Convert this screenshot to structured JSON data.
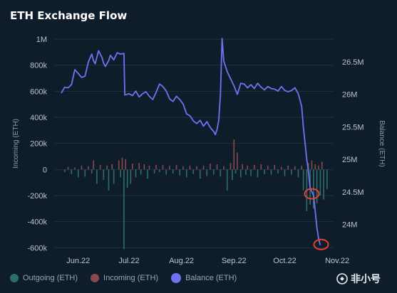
{
  "chart_data": {
    "type": "bar+line",
    "title": "ETH Exchange Flow",
    "ylabel_left": "Incoming (ETH)",
    "ylabel_right": "Balance (ETH)",
    "yticks_left": [
      "1M",
      "800k",
      "600k",
      "400k",
      "200k",
      "0",
      "-200k",
      "-400k",
      "-600k"
    ],
    "yticks_left_values": [
      1000000,
      800000,
      600000,
      400000,
      200000,
      0,
      -200000,
      -400000,
      -600000
    ],
    "ylim_left": [
      -620000,
      1000000
    ],
    "yticks_right": [
      "26.5M",
      "26M",
      "25.5M",
      "25M",
      "24.5M",
      "24M"
    ],
    "yticks_right_values": [
      26500000,
      26000000,
      25500000,
      25000000,
      24500000,
      24000000
    ],
    "ylim_right": [
      23600000,
      26850000
    ],
    "xlim": [
      0,
      160
    ],
    "xticks": [
      {
        "label": "Jun.22",
        "pos": 10
      },
      {
        "label": "Jul.22",
        "pos": 40
      },
      {
        "label": "Aug.22",
        "pos": 71
      },
      {
        "label": "Sep.22",
        "pos": 102
      },
      {
        "label": "Oct.22",
        "pos": 132
      },
      {
        "label": "Nov.22",
        "pos": 163
      }
    ],
    "legend": [
      {
        "label": "Outgoing (ETH)",
        "color": "#2c6f6a"
      },
      {
        "label": "Incoming (ETH)",
        "color": "#8a4a4d"
      },
      {
        "label": "Balance (ETH)",
        "color": "#6f73f2"
      }
    ],
    "incoming": [
      [
        4,
        20000
      ],
      [
        8,
        15000
      ],
      [
        12,
        30000
      ],
      [
        16,
        25000
      ],
      [
        19,
        70000
      ],
      [
        23,
        35000
      ],
      [
        27,
        30000
      ],
      [
        30,
        40000
      ],
      [
        34,
        70000
      ],
      [
        36,
        90000
      ],
      [
        38,
        80000
      ],
      [
        42,
        45000
      ],
      [
        46,
        50000
      ],
      [
        49,
        40000
      ],
      [
        52,
        30000
      ],
      [
        56,
        35000
      ],
      [
        60,
        35000
      ],
      [
        64,
        30000
      ],
      [
        68,
        35000
      ],
      [
        72,
        25000
      ],
      [
        76,
        30000
      ],
      [
        80,
        25000
      ],
      [
        84,
        30000
      ],
      [
        88,
        45000
      ],
      [
        92,
        40000
      ],
      [
        96,
        25000
      ],
      [
        100,
        50000
      ],
      [
        102,
        230000
      ],
      [
        104,
        130000
      ],
      [
        107,
        40000
      ],
      [
        110,
        30000
      ],
      [
        114,
        35000
      ],
      [
        118,
        40000
      ],
      [
        122,
        30000
      ],
      [
        126,
        35000
      ],
      [
        130,
        20000
      ],
      [
        134,
        30000
      ],
      [
        138,
        25000
      ],
      [
        142,
        30000
      ],
      [
        146,
        50000
      ],
      [
        148,
        70000
      ],
      [
        150,
        40000
      ],
      [
        152,
        30000
      ],
      [
        154,
        60000
      ]
    ],
    "outgoing": [
      [
        2,
        -20000
      ],
      [
        6,
        -35000
      ],
      [
        10,
        -60000
      ],
      [
        14,
        -55000
      ],
      [
        18,
        -30000
      ],
      [
        21,
        -110000
      ],
      [
        25,
        -80000
      ],
      [
        28,
        -160000
      ],
      [
        31,
        -110000
      ],
      [
        35,
        -60000
      ],
      [
        39,
        -140000
      ],
      [
        41,
        -110000
      ],
      [
        44,
        -60000
      ],
      [
        47,
        -40000
      ],
      [
        51,
        -70000
      ],
      [
        55,
        -30000
      ],
      [
        58,
        -20000
      ],
      [
        62,
        -40000
      ],
      [
        66,
        -30000
      ],
      [
        70,
        -45000
      ],
      [
        74,
        -60000
      ],
      [
        78,
        -35000
      ],
      [
        82,
        -70000
      ],
      [
        86,
        -50000
      ],
      [
        90,
        -40000
      ],
      [
        94,
        -55000
      ],
      [
        98,
        -160000
      ],
      [
        101,
        -80000
      ],
      [
        103,
        -30000
      ],
      [
        106,
        -60000
      ],
      [
        109,
        -40000
      ],
      [
        112,
        -50000
      ],
      [
        116,
        -60000
      ],
      [
        120,
        -35000
      ],
      [
        124,
        -40000
      ],
      [
        128,
        -30000
      ],
      [
        132,
        -50000
      ],
      [
        136,
        -40000
      ],
      [
        140,
        -60000
      ],
      [
        143,
        -160000
      ],
      [
        145,
        -320000
      ],
      [
        147,
        -270000
      ],
      [
        149,
        -300000
      ],
      [
        151,
        -260000
      ],
      [
        153,
        -200000
      ],
      [
        155,
        -230000
      ],
      [
        157,
        -150000
      ]
    ],
    "outgoing_spike": [
      [
        37,
        -610000
      ]
    ],
    "balance": [
      [
        0,
        26020000
      ],
      [
        2,
        26110000
      ],
      [
        4,
        26100000
      ],
      [
        6,
        26150000
      ],
      [
        8,
        26380000
      ],
      [
        10,
        26320000
      ],
      [
        12,
        26260000
      ],
      [
        14,
        26280000
      ],
      [
        16,
        26500000
      ],
      [
        18,
        26620000
      ],
      [
        19,
        26520000
      ],
      [
        20,
        26470000
      ],
      [
        21,
        26570000
      ],
      [
        22,
        26670000
      ],
      [
        24,
        26570000
      ],
      [
        25,
        26480000
      ],
      [
        26,
        26430000
      ],
      [
        28,
        26520000
      ],
      [
        29,
        26600000
      ],
      [
        31,
        26530000
      ],
      [
        33,
        26640000
      ],
      [
        35,
        26620000
      ],
      [
        37,
        26630000
      ],
      [
        37.5,
        25990000
      ],
      [
        40,
        26010000
      ],
      [
        42,
        25980000
      ],
      [
        44,
        26050000
      ],
      [
        46,
        25960000
      ],
      [
        48,
        26010000
      ],
      [
        50,
        26040000
      ],
      [
        52,
        25970000
      ],
      [
        54,
        25920000
      ],
      [
        56,
        26030000
      ],
      [
        58,
        26160000
      ],
      [
        60,
        26120000
      ],
      [
        62,
        26050000
      ],
      [
        64,
        25930000
      ],
      [
        66,
        25890000
      ],
      [
        68,
        25970000
      ],
      [
        70,
        25920000
      ],
      [
        72,
        25850000
      ],
      [
        74,
        25700000
      ],
      [
        76,
        25670000
      ],
      [
        78,
        25590000
      ],
      [
        80,
        25550000
      ],
      [
        82,
        25600000
      ],
      [
        84,
        25510000
      ],
      [
        86,
        25580000
      ],
      [
        88,
        25490000
      ],
      [
        90,
        25430000
      ],
      [
        91,
        25380000
      ],
      [
        92,
        25460000
      ],
      [
        93,
        25600000
      ],
      [
        94,
        26000000
      ],
      [
        95,
        26860000
      ],
      [
        96,
        26510000
      ],
      [
        98,
        26350000
      ],
      [
        100,
        26240000
      ],
      [
        102,
        26130000
      ],
      [
        104,
        26000000
      ],
      [
        106,
        26170000
      ],
      [
        108,
        26160000
      ],
      [
        110,
        26100000
      ],
      [
        112,
        26150000
      ],
      [
        114,
        26090000
      ],
      [
        116,
        26170000
      ],
      [
        118,
        26110000
      ],
      [
        120,
        26070000
      ],
      [
        122,
        26120000
      ],
      [
        124,
        26090000
      ],
      [
        126,
        26080000
      ],
      [
        128,
        26050000
      ],
      [
        130,
        26120000
      ],
      [
        132,
        26060000
      ],
      [
        134,
        26040000
      ],
      [
        136,
        26060000
      ],
      [
        138,
        26100000
      ],
      [
        140,
        26010000
      ],
      [
        142,
        25810000
      ],
      [
        143,
        25500000
      ],
      [
        144,
        25250000
      ],
      [
        145,
        25000000
      ],
      [
        146,
        24800000
      ],
      [
        147,
        24560000
      ],
      [
        148,
        24500000
      ],
      [
        149,
        24450000
      ],
      [
        150,
        24200000
      ],
      [
        151,
        23950000
      ],
      [
        152,
        23780000
      ],
      [
        153,
        23680000
      ]
    ],
    "highlight_circles": [
      {
        "x": 148,
        "y": 24470000
      },
      {
        "x": 153.5,
        "y": 23690000
      }
    ],
    "grid": true,
    "legend_position": "bottom-left"
  },
  "watermark": {
    "text": "非小号"
  }
}
